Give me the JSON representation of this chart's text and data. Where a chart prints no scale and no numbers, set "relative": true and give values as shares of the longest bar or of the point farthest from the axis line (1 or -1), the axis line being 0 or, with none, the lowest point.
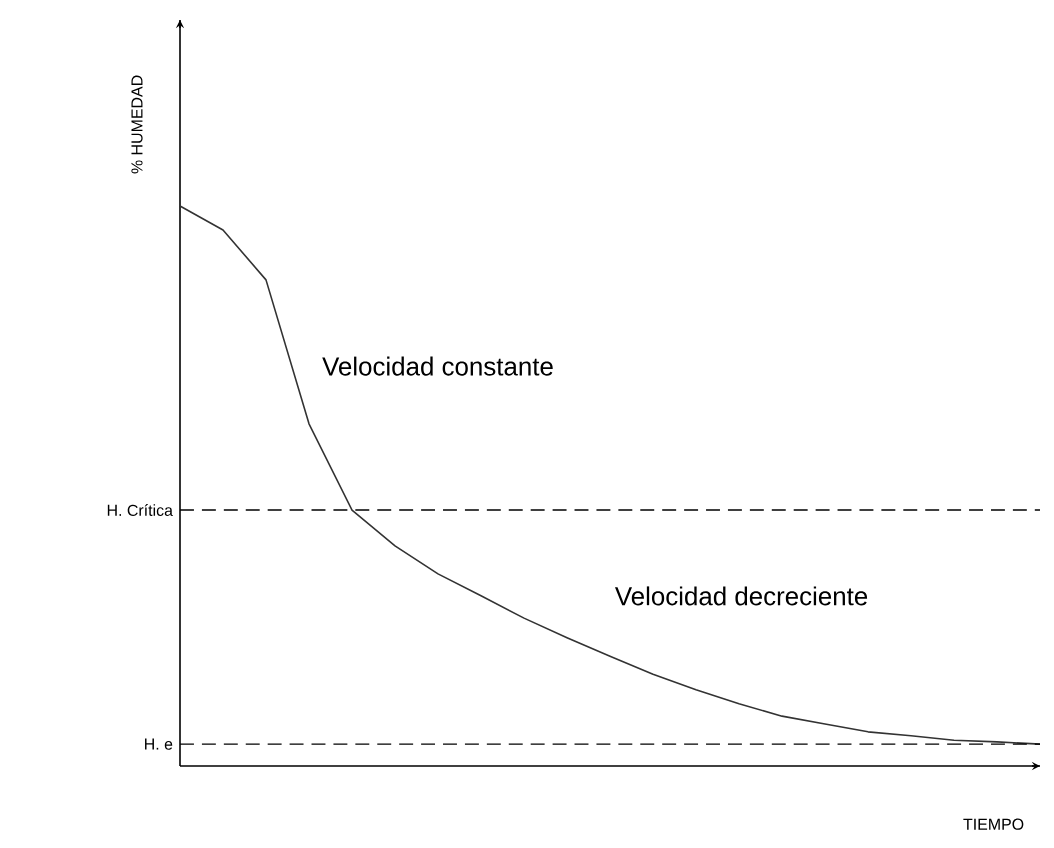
{
  "chart_data": {
    "type": "line",
    "relative": true,
    "ylabel": "% HUMEDAD",
    "xlabel": "TIEMPO",
    "color": "#333333",
    "marker": "none",
    "line_style": "solid",
    "categories": [
      null,
      null,
      null,
      null,
      null,
      null,
      null,
      null,
      null,
      null,
      null,
      null,
      null,
      null,
      null,
      null,
      null,
      null,
      null,
      null,
      null
    ],
    "values": [
      1.0,
      0.957,
      0.868,
      0.611,
      0.457,
      0.393,
      0.343,
      0.304,
      0.264,
      0.229,
      0.196,
      0.164,
      0.136,
      0.111,
      0.089,
      0.075,
      0.061,
      0.054,
      0.046,
      0.043,
      0.039
    ],
    "annotations": [
      "Velocidad constante",
      "Velocidad decreciente"
    ],
    "ref_lines": [
      {
        "axis": "y",
        "value": 0.457,
        "label": "H. Crítica",
        "line_style": "dashed"
      },
      {
        "axis": "y",
        "value": 0.039,
        "label": "H. e",
        "line_style": "dashed"
      }
    ]
  }
}
